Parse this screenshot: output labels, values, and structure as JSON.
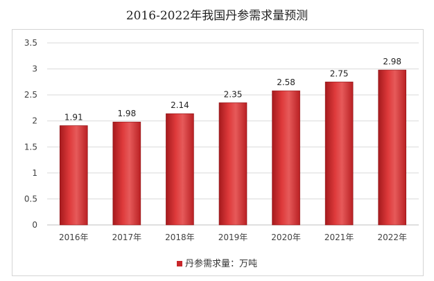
{
  "chart_data": {
    "type": "bar",
    "title": "2016-2022年我国丹参需求量预测",
    "categories": [
      "2016年",
      "2017年",
      "2018年",
      "2019年",
      "2020年",
      "2021年",
      "2022年"
    ],
    "series": [
      {
        "name": "丹参需求量：万吨",
        "values": [
          1.91,
          1.98,
          2.14,
          2.35,
          2.58,
          2.75,
          2.98
        ]
      }
    ],
    "value_labels": [
      "1.91",
      "1.98",
      "2.14",
      "2.35",
      "2.58",
      "2.75",
      "2.98"
    ],
    "yticks": [
      "0",
      "0.5",
      "1",
      "1.5",
      "2",
      "2.5",
      "3",
      "3.5"
    ],
    "ylim": [
      0,
      3.5
    ],
    "grid": true,
    "legend_position": "bottom",
    "colors": {
      "bar_dark": "#a51a1d",
      "bar_mid": "#de3a3b",
      "bar_light": "#e65a5a",
      "grid": "#d9d9d9"
    }
  }
}
